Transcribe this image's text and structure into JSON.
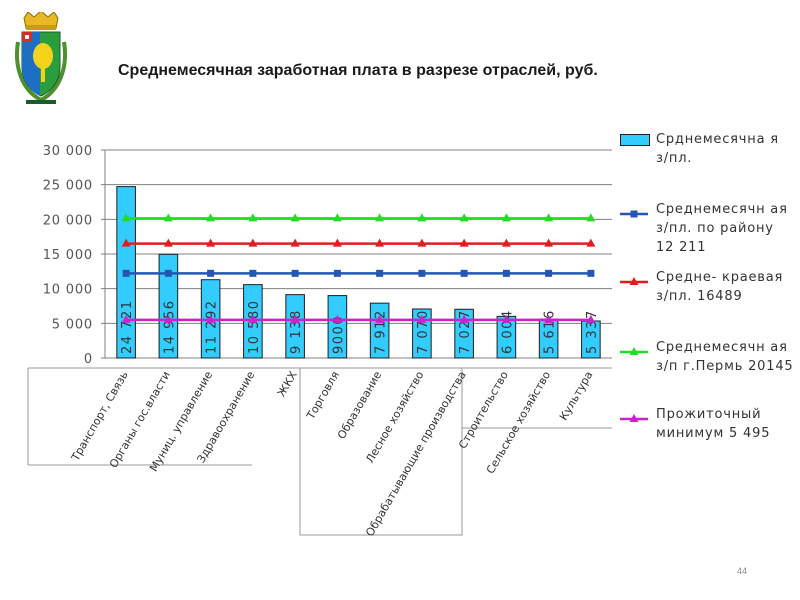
{
  "title": "Среднемесячная заработная плата в разрезе отраслей, руб.",
  "page_number": "44",
  "chart_data": {
    "type": "bar",
    "categories": [
      "Транспорт, Связь",
      "Органы гос.власти",
      "Муниц. управление",
      "Здравоохранение",
      "ЖКХ",
      "Торговля",
      "Образование",
      "Лесное хозяйство",
      "Обрабатывающие производства",
      "Строительство",
      "Сельское хозяйство",
      "Культура"
    ],
    "ylim": [
      0,
      30000
    ],
    "yticks": [
      0,
      5000,
      10000,
      15000,
      20000,
      25000,
      30000
    ],
    "ytick_labels": [
      "0",
      "5 000",
      "10 000",
      "15 000",
      "20 000",
      "25 000",
      "30 000"
    ],
    "series": [
      {
        "name": "Срднемесячная з/пл.",
        "kind": "bar",
        "color": "#33ccff",
        "values": [
          24721,
          14956,
          11292,
          10580,
          9138,
          9000,
          7912,
          7070,
          7027,
          6004,
          5616,
          5337
        ],
        "value_labels": [
          "24 721",
          "14 956",
          "11 292",
          "10 580",
          "9 138",
          "9000",
          "7 912",
          "7 070",
          "7 027",
          "6 004",
          "5 616",
          "5 337"
        ]
      },
      {
        "name": "Среднемесячная з/пл. по району 12 211",
        "kind": "line",
        "color": "#2457b3",
        "marker": "square",
        "value": 12211
      },
      {
        "name": "Средне-краевая з/пл. 16489",
        "kind": "line",
        "color": "#dd1f1f",
        "marker": "triangle",
        "value": 16489
      },
      {
        "name": "Среднемесячная з/п г.Пермь 20145",
        "kind": "line",
        "color": "#22dd22",
        "marker": "triangle",
        "value": 20145
      },
      {
        "name": "Прожиточный минимум 5 495",
        "kind": "line",
        "color": "#cc22cc",
        "marker": "triangle",
        "value": 5495
      }
    ],
    "legend": [
      {
        "text": "Срднемесячна я з/пл.",
        "color": "#33ccff",
        "kind": "bar"
      },
      {
        "text": "Среднемесячн ая з/пл. по району 12 211",
        "color": "#2457b3",
        "kind": "line-square"
      },
      {
        "text": "Средне- краевая з/пл. 16489",
        "color": "#dd1f1f",
        "kind": "line-triangle"
      },
      {
        "text": "Среднемесячн ая з/п г.Пермь 20145",
        "color": "#22dd22",
        "kind": "line-triangle"
      },
      {
        "text": "Прожиточный минимум 5 495",
        "color": "#cc22cc",
        "kind": "line-triangle"
      }
    ],
    "legend_position": "right",
    "grid": true
  }
}
